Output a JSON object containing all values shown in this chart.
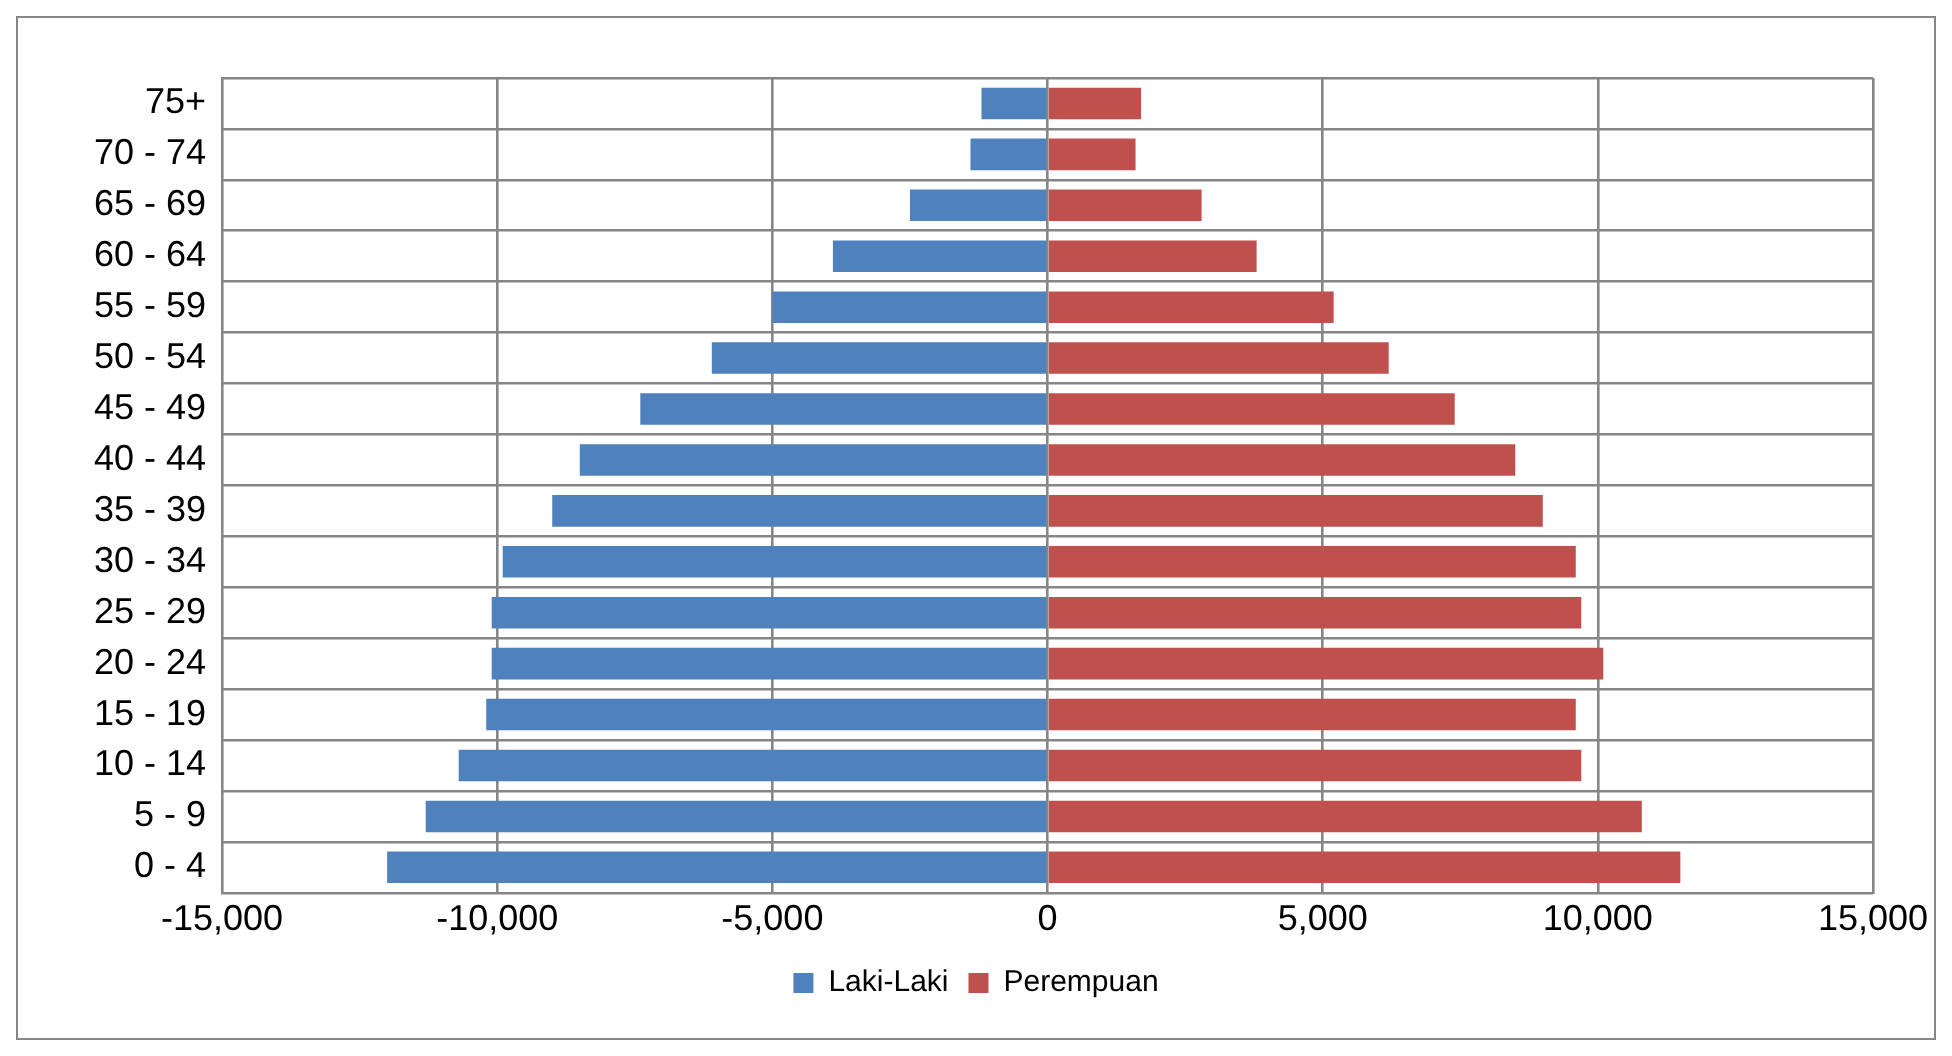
{
  "chart_data": {
    "type": "bar",
    "orientation": "horizontal",
    "stacked": true,
    "categories": [
      "75+",
      "70 - 74",
      "65 - 69",
      "60 - 64",
      "55 - 59",
      "50 - 54",
      "45 - 49",
      "40 - 44",
      "35 - 39",
      "30 - 34",
      "25 - 29",
      "20 - 24",
      "15 - 19",
      "10 - 14",
      "5 - 9",
      "0 - 4"
    ],
    "series": [
      {
        "name": "Laki-Laki",
        "color": "#4f81bd",
        "values": [
          -1200,
          -1400,
          -2500,
          -3900,
          -5000,
          -6100,
          -7400,
          -8500,
          -9000,
          -9900,
          -10100,
          -10100,
          -10200,
          -10700,
          -11300,
          -12000
        ]
      },
      {
        "name": "Perempuan",
        "color": "#c0504d",
        "values": [
          1700,
          1600,
          2800,
          3800,
          5200,
          6200,
          7400,
          8500,
          9000,
          9600,
          9700,
          10100,
          9600,
          9700,
          10800,
          11500
        ]
      }
    ],
    "xlim": [
      -15000,
      15000
    ],
    "xticks": [
      {
        "value": -15000,
        "label": "-15,000"
      },
      {
        "value": -10000,
        "label": "-10,000"
      },
      {
        "value": -5000,
        "label": "-5,000"
      },
      0,
      {
        "value": 5000,
        "label": "5,000"
      },
      {
        "value": 10000,
        "label": "10,000"
      },
      {
        "value": 15000,
        "label": "15,000"
      }
    ],
    "grid": true,
    "legend": "bottom"
  }
}
